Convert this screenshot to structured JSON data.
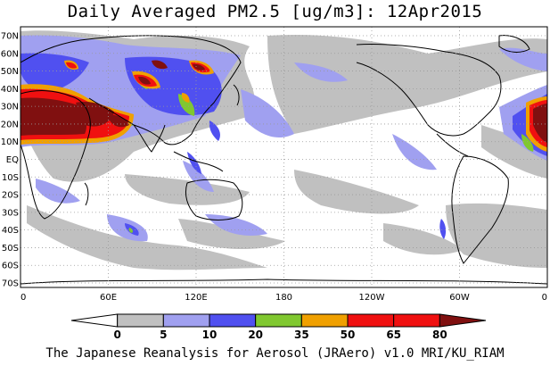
{
  "title": "Daily Averaged PM2.5 [ug/m3]: 12Apr2015",
  "footer": "The Japanese Reanalysis for Aerosol (JRAero) v1.0 MRI/KU_RIAM",
  "lat_labels": [
    "70N",
    "60N",
    "50N",
    "40N",
    "30N",
    "20N",
    "10N",
    "EQ",
    "10S",
    "20S",
    "30S",
    "40S",
    "50S",
    "60S",
    "70S"
  ],
  "lon_labels": [
    "0",
    "60E",
    "120E",
    "180",
    "120W",
    "60W",
    "0"
  ],
  "colorbar": {
    "ticks": [
      "0",
      "5",
      "10",
      "20",
      "35",
      "50",
      "65",
      "80"
    ],
    "colors": [
      "#ffffff",
      "#c0c0c0",
      "#a0a0f0",
      "#5050f0",
      "#80c830",
      "#f0a000",
      "#f01010",
      "#801010"
    ]
  },
  "colors": {
    "land_outline": "#000000",
    "grid": "#999999",
    "ocean": "#ffffff"
  }
}
